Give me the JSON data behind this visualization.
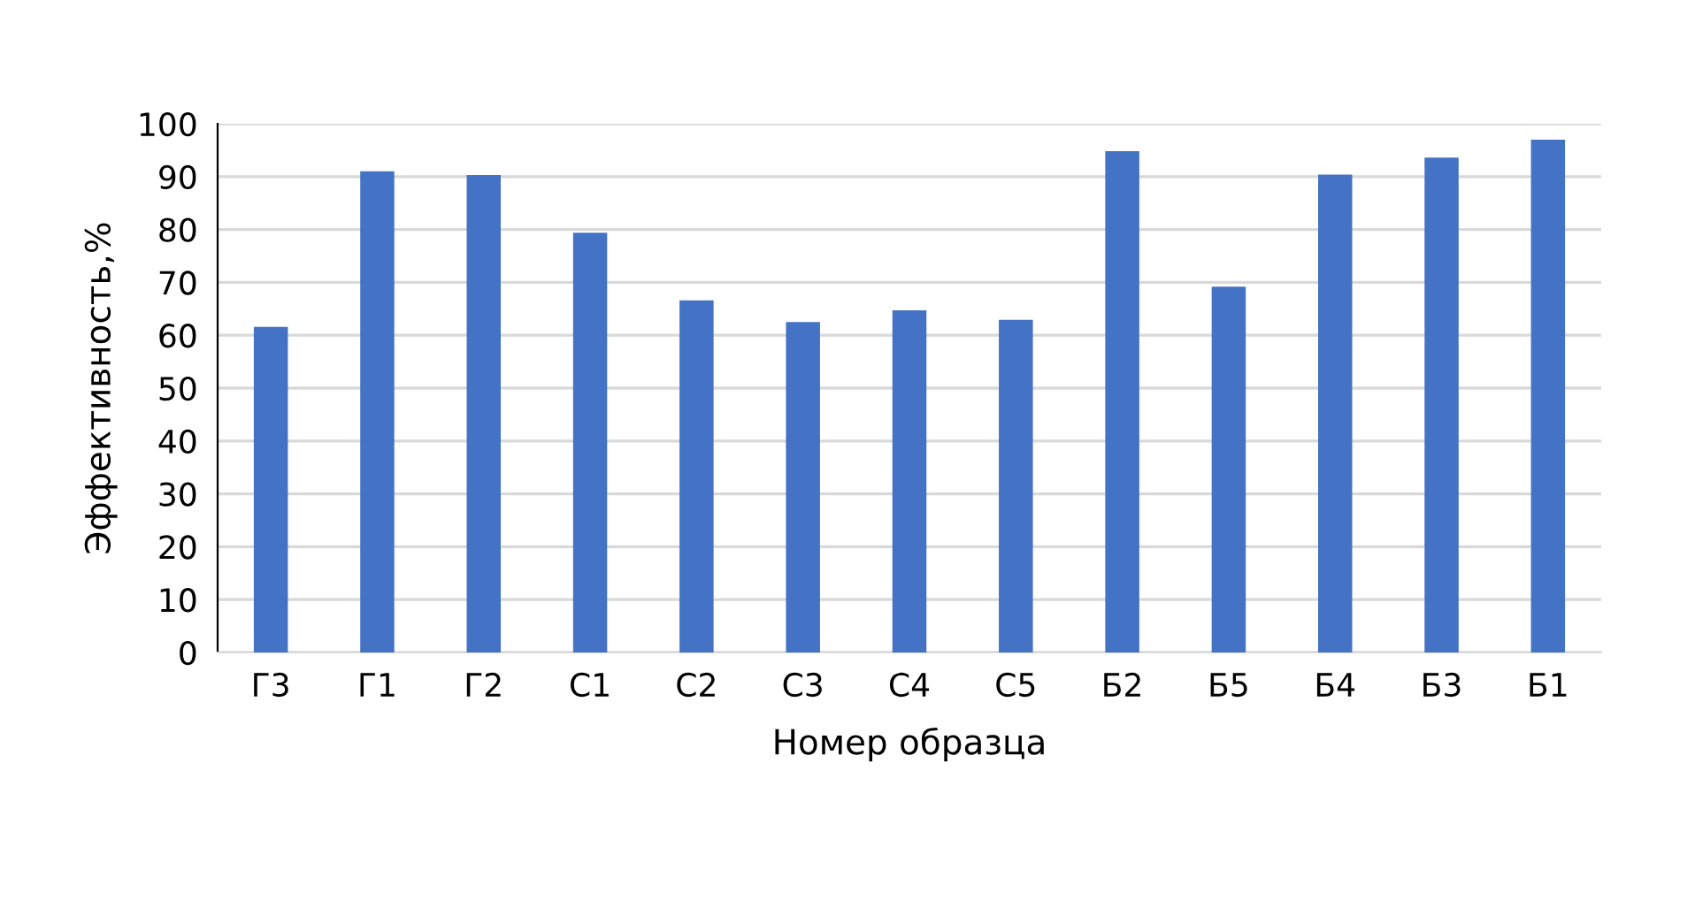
{
  "chart_data": {
    "type": "bar",
    "xlabel": "Номер образца",
    "ylabel": "Эффективность,%",
    "categories": [
      "Г3",
      "Г1",
      "Г2",
      "С1",
      "С2",
      "С3",
      "С4",
      "С5",
      "Б2",
      "Б5",
      "Б4",
      "Б3",
      "Б1"
    ],
    "values": [
      61.6,
      91.0,
      90.3,
      79.4,
      66.6,
      62.5,
      64.7,
      62.9,
      94.8,
      69.2,
      90.4,
      93.6,
      97.0
    ],
    "color": "#4472c4",
    "ylim": [
      0,
      100
    ],
    "yticks": [
      0,
      10,
      20,
      30,
      40,
      50,
      60,
      70,
      80,
      90,
      100
    ],
    "grid": "y"
  }
}
